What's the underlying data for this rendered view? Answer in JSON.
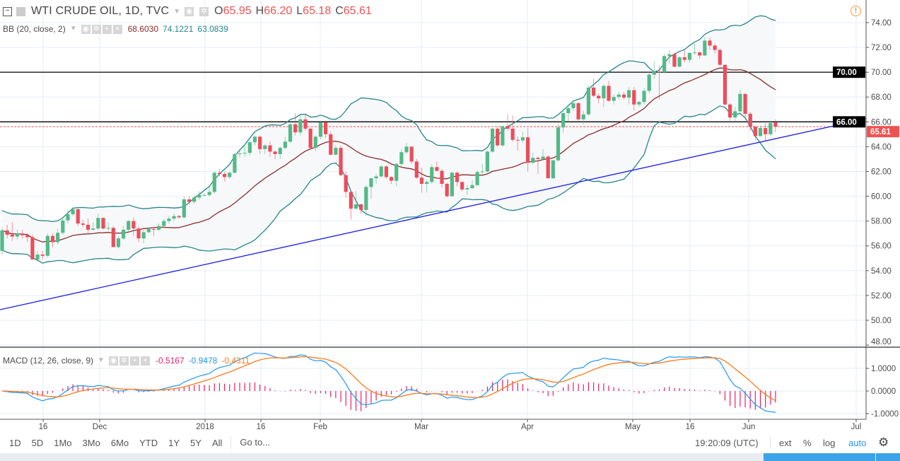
{
  "header": {
    "symbol": "WTI CRUDE OIL, 1D, TVC",
    "ohlc": {
      "o_label": "O",
      "o": "65.95",
      "h_label": "H",
      "h": "66.20",
      "l_label": "L",
      "l": "65.18",
      "c_label": "C",
      "c": "65.61"
    }
  },
  "bb_legend": {
    "label": "BB (20, close, 2)",
    "basis": "68.6030",
    "upper": "74.1221",
    "lower": "63.0839"
  },
  "macd_legend": {
    "label": "MACD (12, 26, close, 9)",
    "hist": "-0.5167",
    "macd": "-0.9478",
    "signal": "-0.4311"
  },
  "colors": {
    "up": "#53b987",
    "down": "#eb4d5c",
    "bb_band": "#26868a",
    "bb_basis": "#8b2c2c",
    "macd": "#2196f3",
    "signal": "#ff7a1a",
    "hist": "#e91e63",
    "trendline": "#1e1ef0",
    "level": "#000000",
    "last_price": "#ef5350",
    "accent": "#2196f3"
  },
  "price_axis": {
    "ticks": [
      "74.00",
      "72.00",
      "70.00",
      "68.00",
      "66.00",
      "64.00",
      "62.00",
      "60.00",
      "58.00",
      "56.00",
      "54.00",
      "52.00",
      "50.00",
      "48.00"
    ]
  },
  "macd_axis": {
    "ticks": [
      "1.0000",
      "0.0000",
      "-1.0000"
    ]
  },
  "level_labels": {
    "upper": "70.00",
    "lower": "66.00",
    "last": "65.61"
  },
  "time_axis": {
    "labels": [
      "16",
      "Dec",
      "2018",
      "16",
      "Feb",
      "Mar",
      "Apr",
      "May",
      "16",
      "Jun",
      "Jul"
    ]
  },
  "toolbar": {
    "ranges": [
      "1D",
      "5D",
      "1Mo",
      "3Mo",
      "6Mo",
      "YTD",
      "1Y",
      "5Y",
      "All"
    ],
    "goto": "Go to...",
    "clock": "19:20:09 (UTC)",
    "ext": "ext",
    "percent": "%",
    "log": "log",
    "auto": "auto"
  },
  "chart_data": {
    "type": "candlestick",
    "levels": [
      70.0,
      66.0
    ],
    "last_price": 65.61,
    "ylim": [
      48,
      75
    ],
    "candles_ohlc": [
      [
        55.6,
        57.5,
        55.3,
        57.25
      ],
      [
        57.25,
        57.7,
        56.6,
        56.9
      ],
      [
        56.9,
        57.9,
        56.4,
        56.75
      ],
      [
        56.75,
        57.3,
        56.5,
        57.0
      ],
      [
        57.0,
        57.3,
        56.6,
        56.85
      ],
      [
        56.85,
        57.0,
        56.3,
        56.7
      ],
      [
        56.7,
        56.9,
        54.9,
        54.9
      ],
      [
        54.9,
        55.6,
        54.7,
        55.3
      ],
      [
        55.3,
        55.6,
        54.9,
        55.2
      ],
      [
        55.2,
        57.0,
        55.1,
        56.8
      ],
      [
        56.8,
        57.0,
        55.9,
        56.3
      ],
      [
        56.3,
        57.4,
        56.1,
        57.05
      ],
      [
        57.05,
        58.2,
        56.9,
        58.05
      ],
      [
        58.05,
        58.9,
        57.8,
        58.55
      ],
      [
        58.55,
        59.0,
        58.4,
        58.95
      ],
      [
        58.95,
        59.0,
        57.6,
        57.8
      ],
      [
        57.8,
        58.1,
        57.5,
        57.7
      ],
      [
        57.7,
        58.2,
        57.0,
        57.3
      ],
      [
        57.3,
        57.9,
        57.2,
        57.4
      ],
      [
        57.4,
        58.6,
        57.3,
        58.25
      ],
      [
        58.25,
        58.3,
        57.3,
        57.4
      ],
      [
        57.4,
        57.9,
        57.2,
        57.45
      ],
      [
        57.45,
        57.6,
        55.9,
        55.9
      ],
      [
        55.9,
        56.8,
        55.8,
        56.6
      ],
      [
        56.6,
        57.6,
        56.5,
        57.3
      ],
      [
        57.3,
        58.1,
        57.1,
        58.0
      ],
      [
        58.0,
        58.3,
        56.8,
        57.4
      ],
      [
        57.4,
        57.6,
        56.3,
        56.6
      ],
      [
        56.6,
        57.3,
        56.2,
        57.1
      ],
      [
        57.1,
        57.5,
        57.0,
        57.35
      ],
      [
        57.35,
        57.5,
        56.8,
        57.3
      ],
      [
        57.3,
        57.8,
        57.2,
        57.6
      ],
      [
        57.6,
        58.2,
        57.5,
        58.0
      ],
      [
        58.0,
        58.4,
        57.8,
        58.2
      ],
      [
        58.2,
        58.6,
        58.0,
        58.4
      ],
      [
        58.4,
        58.5,
        58.2,
        58.3
      ],
      [
        58.3,
        60.0,
        58.2,
        59.75
      ],
      [
        59.75,
        60.0,
        59.4,
        59.55
      ],
      [
        59.55,
        60.1,
        59.4,
        59.9
      ],
      [
        59.9,
        60.4,
        59.7,
        60.1
      ],
      [
        60.1,
        60.2,
        60.0,
        60.1
      ],
      [
        60.1,
        60.7,
        60.0,
        60.35
      ],
      [
        60.35,
        62.0,
        60.2,
        61.9
      ],
      [
        61.9,
        62.2,
        61.6,
        61.8
      ],
      [
        61.8,
        62.0,
        61.2,
        61.55
      ],
      [
        61.55,
        62.0,
        61.4,
        61.9
      ],
      [
        61.9,
        63.5,
        61.8,
        63.4
      ],
      [
        63.4,
        63.7,
        63.1,
        63.45
      ],
      [
        63.45,
        64.2,
        63.2,
        63.5
      ],
      [
        63.5,
        64.5,
        63.3,
        64.35
      ],
      [
        64.35,
        64.9,
        64.1,
        64.8
      ],
      [
        64.8,
        64.9,
        63.4,
        63.8
      ],
      [
        63.8,
        64.2,
        63.4,
        64.1
      ],
      [
        64.1,
        64.4,
        63.2,
        63.6
      ],
      [
        63.6,
        63.7,
        63.0,
        63.4
      ],
      [
        63.4,
        64.0,
        63.0,
        63.9
      ],
      [
        63.9,
        64.8,
        63.8,
        64.4
      ],
      [
        64.4,
        65.9,
        64.3,
        65.8
      ],
      [
        65.8,
        66.7,
        64.9,
        65.15
      ],
      [
        65.15,
        66.6,
        64.9,
        66.2
      ],
      [
        66.2,
        66.6,
        65.3,
        65.45
      ],
      [
        65.45,
        65.6,
        63.8,
        63.9
      ],
      [
        63.9,
        64.9,
        63.6,
        64.8
      ],
      [
        64.8,
        66.1,
        64.6,
        65.95
      ],
      [
        65.95,
        66.1,
        64.7,
        65.0
      ],
      [
        65.0,
        65.2,
        63.3,
        63.35
      ],
      [
        63.35,
        64.1,
        63.3,
        63.9
      ],
      [
        63.9,
        64.1,
        61.6,
        61.7
      ],
      [
        61.7,
        62.0,
        59.9,
        60.35
      ],
      [
        60.35,
        60.5,
        58.1,
        59.0
      ],
      [
        59.0,
        60.4,
        58.9,
        59.35
      ],
      [
        59.35,
        59.4,
        58.6,
        58.9
      ],
      [
        58.9,
        60.9,
        58.4,
        60.75
      ],
      [
        60.75,
        61.5,
        59.8,
        61.45
      ],
      [
        61.45,
        61.8,
        61.0,
        61.6
      ],
      [
        61.6,
        62.5,
        61.5,
        62.4
      ],
      [
        62.4,
        62.5,
        61.4,
        61.55
      ],
      [
        61.55,
        61.6,
        61.0,
        61.25
      ],
      [
        61.25,
        62.7,
        60.8,
        62.6
      ],
      [
        62.6,
        63.8,
        62.4,
        63.55
      ],
      [
        63.55,
        64.3,
        63.4,
        64.0
      ],
      [
        64.0,
        64.0,
        62.6,
        62.8
      ],
      [
        62.8,
        63.0,
        61.4,
        61.5
      ],
      [
        61.5,
        62.3,
        60.3,
        61.0
      ],
      [
        61.0,
        61.3,
        60.3,
        61.15
      ],
      [
        61.15,
        62.6,
        61.0,
        62.35
      ],
      [
        62.35,
        62.8,
        62.0,
        62.05
      ],
      [
        62.05,
        62.2,
        60.7,
        61.0
      ],
      [
        61.0,
        61.1,
        59.9,
        60.0
      ],
      [
        60.0,
        62.0,
        60.0,
        61.9
      ],
      [
        61.9,
        62.0,
        60.8,
        61.15
      ],
      [
        61.15,
        61.2,
        60.4,
        60.55
      ],
      [
        60.55,
        60.9,
        60.1,
        60.65
      ],
      [
        60.65,
        61.3,
        60.6,
        60.9
      ],
      [
        60.9,
        62.1,
        60.8,
        61.95
      ],
      [
        61.95,
        62.6,
        61.7,
        62.0
      ],
      [
        62.0,
        63.7,
        61.9,
        63.6
      ],
      [
        63.6,
        65.5,
        63.5,
        65.45
      ],
      [
        65.45,
        65.6,
        64.0,
        64.1
      ],
      [
        64.1,
        65.7,
        64.0,
        65.65
      ],
      [
        65.65,
        66.6,
        65.3,
        65.45
      ],
      [
        65.45,
        66.5,
        64.4,
        64.55
      ],
      [
        64.55,
        64.8,
        63.7,
        64.5
      ],
      [
        64.5,
        65.2,
        64.3,
        64.75
      ],
      [
        64.75,
        65.5,
        62.0,
        62.7
      ],
      [
        62.7,
        63.5,
        62.6,
        63.1
      ],
      [
        63.1,
        63.2,
        61.8,
        63.0
      ],
      [
        63.0,
        63.8,
        62.9,
        63.2
      ],
      [
        63.2,
        63.3,
        61.5,
        61.45
      ],
      [
        61.45,
        62.9,
        61.4,
        62.9
      ],
      [
        62.9,
        65.8,
        62.8,
        65.55
      ],
      [
        65.55,
        66.9,
        65.1,
        66.7
      ],
      [
        66.7,
        67.4,
        66.0,
        67.1
      ],
      [
        67.1,
        67.8,
        66.9,
        67.5
      ],
      [
        67.5,
        67.6,
        66.1,
        66.2
      ],
      [
        66.2,
        66.9,
        65.8,
        66.6
      ],
      [
        66.6,
        68.9,
        66.5,
        68.76
      ],
      [
        68.76,
        69.5,
        68.0,
        68.1
      ],
      [
        68.1,
        68.3,
        67.5,
        67.9
      ],
      [
        67.9,
        69.0,
        67.2,
        68.9
      ],
      [
        68.9,
        69.3,
        67.6,
        67.7
      ],
      [
        67.7,
        68.2,
        67.4,
        68.0
      ],
      [
        68.0,
        68.4,
        67.8,
        68.2
      ],
      [
        68.2,
        68.4,
        67.8,
        67.95
      ],
      [
        67.95,
        68.8,
        67.4,
        68.55
      ],
      [
        68.55,
        68.8,
        66.9,
        67.4
      ],
      [
        67.4,
        67.7,
        67.2,
        67.6
      ],
      [
        67.6,
        68.7,
        67.4,
        68.5
      ],
      [
        68.5,
        70.0,
        68.3,
        69.8
      ],
      [
        69.8,
        70.9,
        69.5,
        70.05
      ],
      [
        70.05,
        70.5,
        67.8,
        70.0
      ],
      [
        70.0,
        71.5,
        69.9,
        71.3
      ],
      [
        71.3,
        71.8,
        70.7,
        71.45
      ],
      [
        71.45,
        71.6,
        70.4,
        70.45
      ],
      [
        70.45,
        71.3,
        70.4,
        71.2
      ],
      [
        71.2,
        71.8,
        70.8,
        71.0
      ],
      [
        71.0,
        71.6,
        70.8,
        71.55
      ],
      [
        71.55,
        72.3,
        71.4,
        71.6
      ],
      [
        71.6,
        71.7,
        71.1,
        71.35
      ],
      [
        71.35,
        72.8,
        71.3,
        72.55
      ],
      [
        72.55,
        72.8,
        71.8,
        72.15
      ],
      [
        72.15,
        72.3,
        71.5,
        71.8
      ],
      [
        71.8,
        71.9,
        70.5,
        70.6
      ],
      [
        70.6,
        70.6,
        67.3,
        67.4
      ],
      [
        67.4,
        67.5,
        66.0,
        66.35
      ],
      [
        66.35,
        67.2,
        66.0,
        66.85
      ],
      [
        66.85,
        68.6,
        66.7,
        68.25
      ],
      [
        68.25,
        68.3,
        66.2,
        66.65
      ],
      [
        66.65,
        66.8,
        65.3,
        65.6
      ],
      [
        65.6,
        65.7,
        64.5,
        64.85
      ],
      [
        64.85,
        65.7,
        64.8,
        65.5
      ],
      [
        65.5,
        65.9,
        64.5,
        65.0
      ],
      [
        65.0,
        66.0,
        64.9,
        65.9
      ],
      [
        65.95,
        66.2,
        65.18,
        65.61
      ]
    ]
  }
}
